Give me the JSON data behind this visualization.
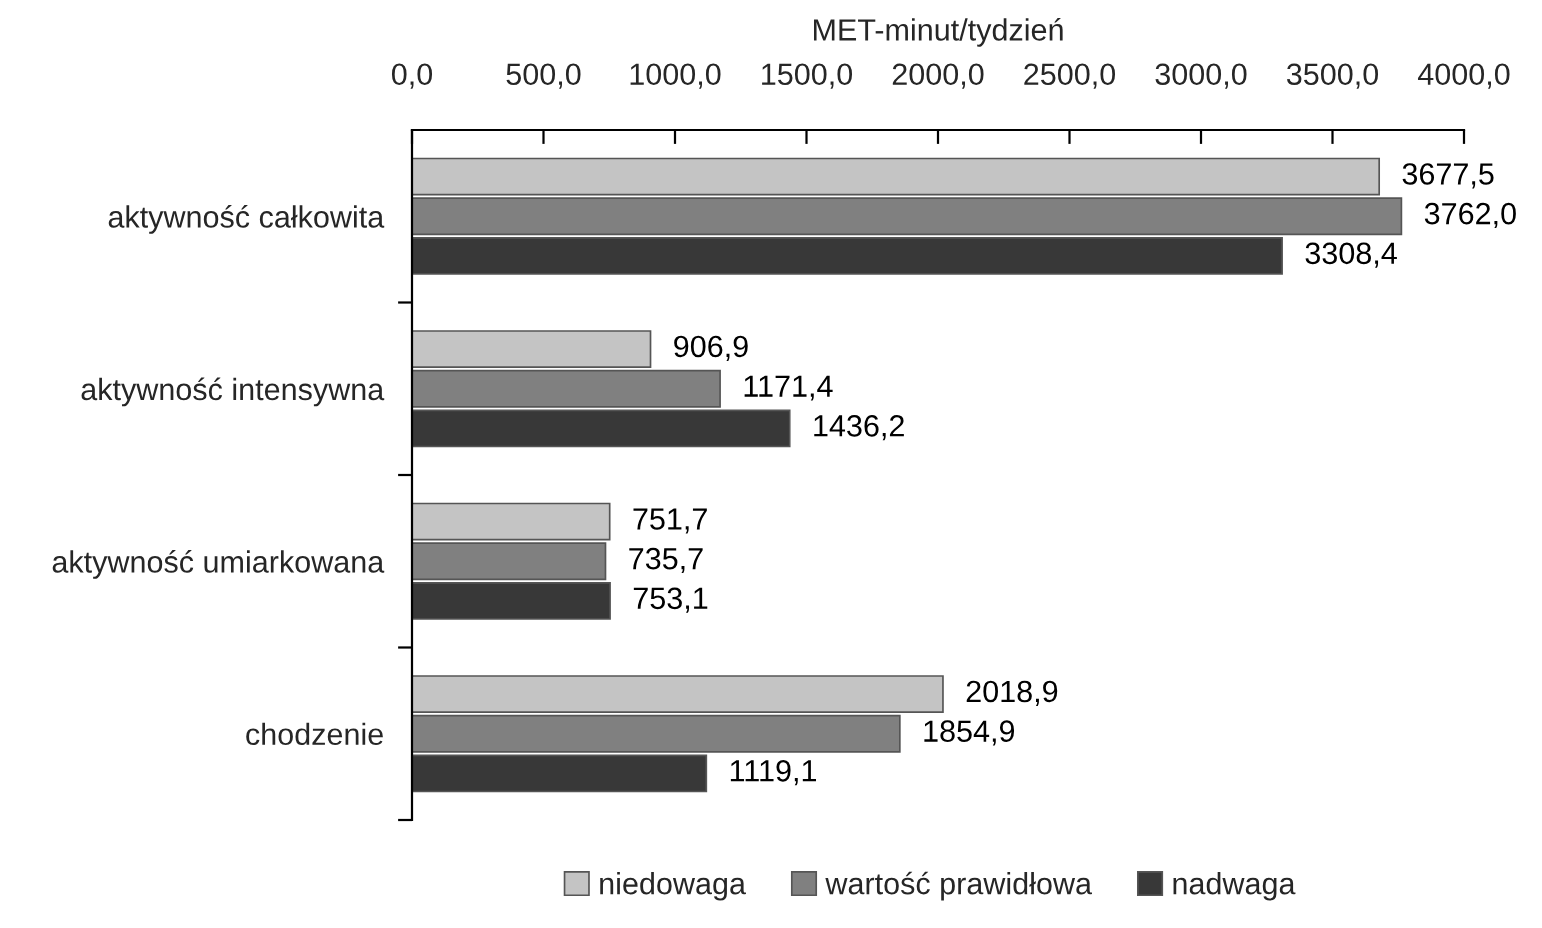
{
  "chart_data": {
    "type": "bar",
    "orientation": "horizontal",
    "xlabel": "MET-minut/tydzień",
    "categories": [
      "aktywność całkowita",
      "aktywność intensywna",
      "aktywność umiarkowana",
      "chodzenie"
    ],
    "series": [
      {
        "name": "niedowaga",
        "color": "#c4c4c4",
        "values": [
          3677.5,
          906.9,
          751.7,
          2018.9
        ],
        "value_labels": [
          "3677,5",
          "906,9",
          "751,7",
          "2018,9"
        ]
      },
      {
        "name": "wartość prawidłowa",
        "color": "#808080",
        "values": [
          3762.0,
          1171.4,
          735.7,
          1854.9
        ],
        "value_labels": [
          "3762,0",
          "1171,4",
          "735,7",
          "1854,9"
        ]
      },
      {
        "name": "nadwaga",
        "color": "#383838",
        "values": [
          3308.4,
          1436.2,
          753.1,
          1119.1
        ],
        "value_labels": [
          "3308,4",
          "1436,2",
          "753,1",
          "1119,1"
        ]
      }
    ],
    "xlim": [
      0,
      4000
    ],
    "xticks": [
      {
        "value": 0,
        "label": "0,0"
      },
      {
        "value": 500,
        "label": "500,0"
      },
      {
        "value": 1000,
        "label": "1000,0"
      },
      {
        "value": 1500,
        "label": "1500,0"
      },
      {
        "value": 2000,
        "label": "2000,0"
      },
      {
        "value": 2500,
        "label": "2500,0"
      },
      {
        "value": 3000,
        "label": "3000,0"
      },
      {
        "value": 3500,
        "label": "3500,0"
      },
      {
        "value": 4000,
        "label": "4000,0"
      }
    ],
    "grid": false,
    "legend": "bottom"
  }
}
